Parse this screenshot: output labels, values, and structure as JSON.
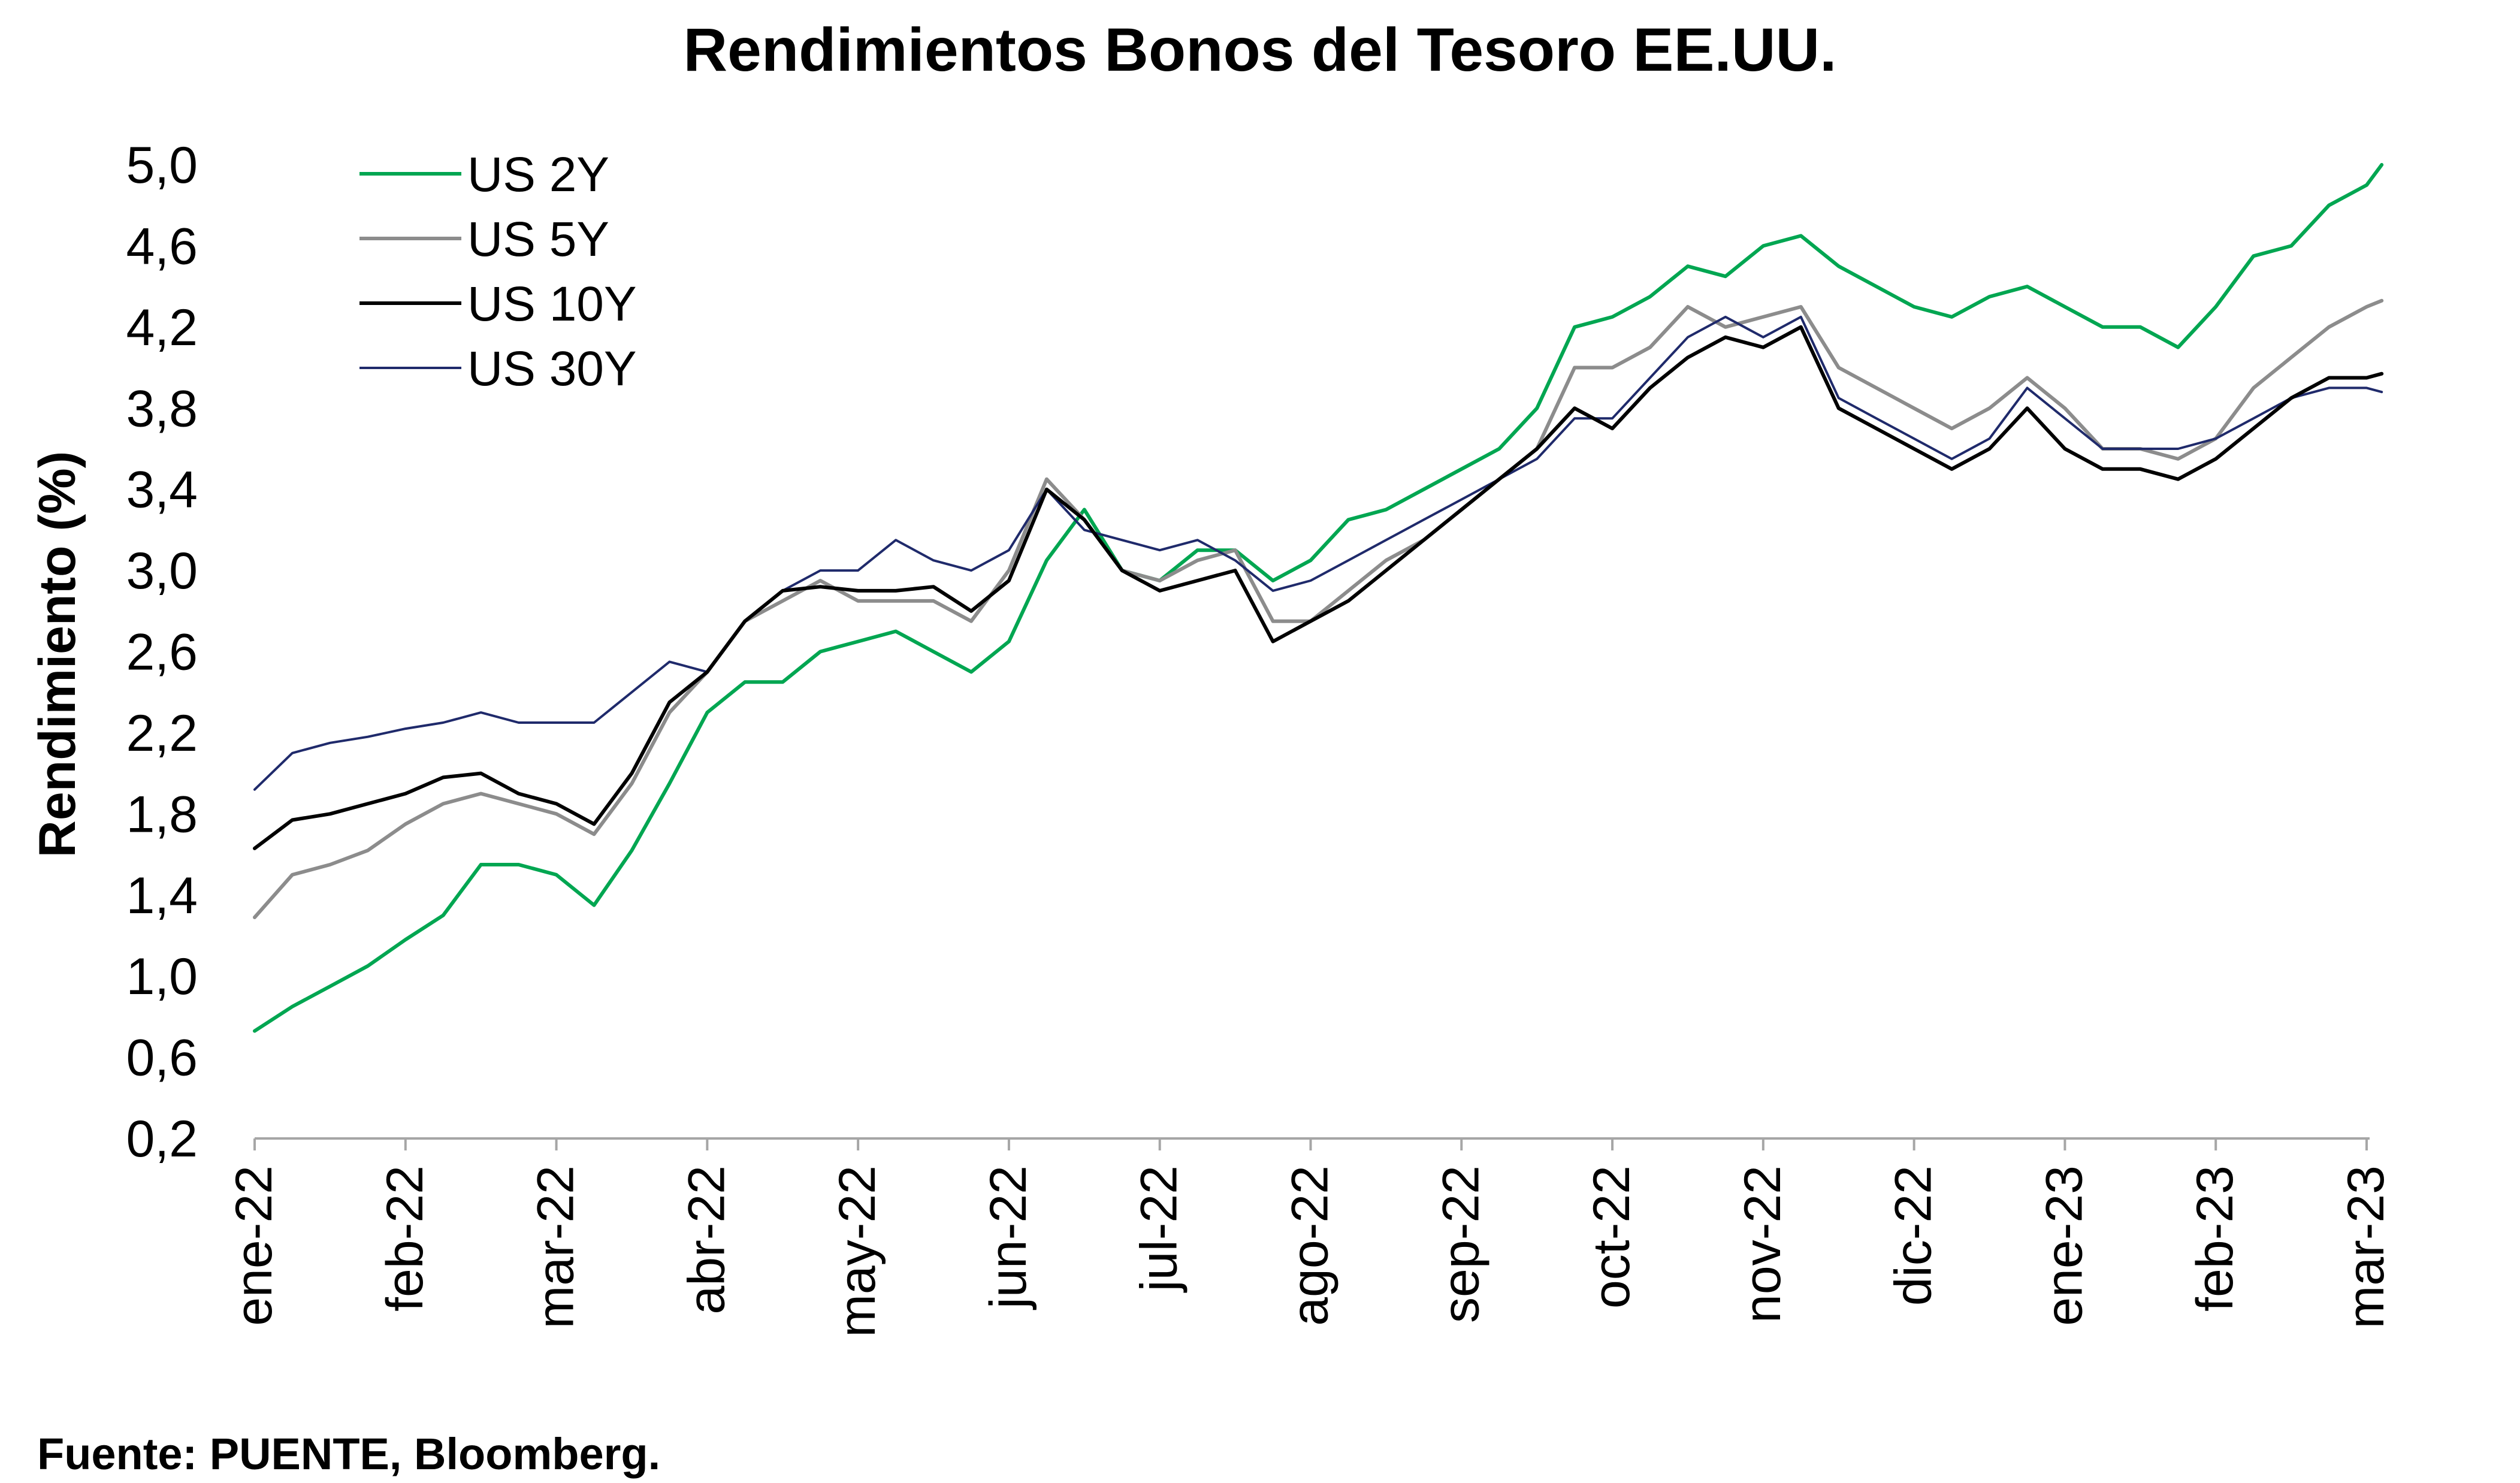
{
  "page": {
    "source": "Fuente: PUENTE, Bloomberg."
  },
  "chart_data": {
    "type": "line",
    "title": "Rendimientos Bonos del Tesoro EE.UU.",
    "xlabel": "",
    "ylabel": "Rendimiento (%)",
    "ylim": [
      0.2,
      5.0
    ],
    "yticks": [
      "5,0",
      "4,6",
      "4,2",
      "3,8",
      "3,4",
      "3,0",
      "2,6",
      "2,2",
      "1,8",
      "1,4",
      "1,0",
      "0,6",
      "0,2"
    ],
    "xlabels": [
      "ene-22",
      "feb-22",
      "mar-22",
      "abr-22",
      "may-22",
      "jun-22",
      "jul-22",
      "ago-22",
      "sep-22",
      "oct-22",
      "nov-22",
      "dic-22",
      "ene-23",
      "feb-23",
      "mar-23"
    ],
    "x": [
      0,
      0.25,
      0.5,
      0.75,
      1,
      1.25,
      1.5,
      1.75,
      2,
      2.25,
      2.5,
      2.75,
      3,
      3.25,
      3.5,
      3.75,
      4,
      4.25,
      4.5,
      4.75,
      5,
      5.25,
      5.5,
      5.75,
      6,
      6.25,
      6.5,
      6.75,
      7,
      7.25,
      7.5,
      7.75,
      8,
      8.25,
      8.5,
      8.75,
      9,
      9.25,
      9.5,
      9.75,
      10,
      10.25,
      10.5,
      10.75,
      11,
      11.25,
      11.5,
      11.75,
      12,
      12.25,
      12.5,
      12.75,
      13,
      13.25,
      13.5,
      13.75,
      14,
      14.1
    ],
    "legend_position": "top-left",
    "grid": false,
    "series": [
      {
        "name": "US 2Y",
        "color": "#00A651",
        "values": [
          0.73,
          0.85,
          0.95,
          1.05,
          1.18,
          1.3,
          1.55,
          1.55,
          1.5,
          1.35,
          1.62,
          1.95,
          2.3,
          2.45,
          2.45,
          2.6,
          2.65,
          2.7,
          2.6,
          2.5,
          2.65,
          3.05,
          3.3,
          3.0,
          2.95,
          3.1,
          3.1,
          2.95,
          3.05,
          3.25,
          3.3,
          3.4,
          3.5,
          3.6,
          3.8,
          4.2,
          4.25,
          4.35,
          4.5,
          4.45,
          4.6,
          4.65,
          4.5,
          4.4,
          4.3,
          4.25,
          4.35,
          4.4,
          4.3,
          4.2,
          4.2,
          4.1,
          4.3,
          4.55,
          4.6,
          4.8,
          4.9,
          5.0
        ]
      },
      {
        "name": "US 5Y",
        "color": "#8C8C8C",
        "values": [
          1.29,
          1.5,
          1.55,
          1.62,
          1.75,
          1.85,
          1.9,
          1.85,
          1.8,
          1.7,
          1.95,
          2.3,
          2.5,
          2.75,
          2.85,
          2.95,
          2.85,
          2.85,
          2.85,
          2.75,
          3.0,
          3.45,
          3.25,
          3.0,
          2.95,
          3.05,
          3.1,
          2.75,
          2.75,
          2.9,
          3.05,
          3.15,
          3.3,
          3.45,
          3.6,
          4.0,
          4.0,
          4.1,
          4.3,
          4.2,
          4.25,
          4.3,
          4.0,
          3.9,
          3.8,
          3.7,
          3.8,
          3.95,
          3.8,
          3.6,
          3.6,
          3.55,
          3.65,
          3.9,
          4.05,
          4.2,
          4.3,
          4.33
        ]
      },
      {
        "name": "US 10Y",
        "color": "#000000",
        "values": [
          1.63,
          1.77,
          1.8,
          1.85,
          1.9,
          1.98,
          2.0,
          1.9,
          1.85,
          1.75,
          2.0,
          2.35,
          2.5,
          2.75,
          2.9,
          2.92,
          2.9,
          2.9,
          2.92,
          2.8,
          2.95,
          3.4,
          3.25,
          3.0,
          2.9,
          2.95,
          3.0,
          2.65,
          2.75,
          2.85,
          3.0,
          3.15,
          3.3,
          3.45,
          3.6,
          3.8,
          3.7,
          3.9,
          4.05,
          4.15,
          4.1,
          4.2,
          3.8,
          3.7,
          3.6,
          3.5,
          3.6,
          3.8,
          3.6,
          3.5,
          3.5,
          3.45,
          3.55,
          3.7,
          3.85,
          3.95,
          3.95,
          3.97
        ]
      },
      {
        "name": "US 30Y",
        "color": "#1F2A6B",
        "values": [
          1.92,
          2.1,
          2.15,
          2.18,
          2.22,
          2.25,
          2.3,
          2.25,
          2.25,
          2.25,
          2.4,
          2.55,
          2.5,
          2.75,
          2.9,
          3.0,
          3.0,
          3.15,
          3.05,
          3.0,
          3.1,
          3.4,
          3.2,
          3.15,
          3.1,
          3.15,
          3.05,
          2.9,
          2.95,
          3.05,
          3.15,
          3.25,
          3.35,
          3.45,
          3.55,
          3.75,
          3.75,
          3.95,
          4.15,
          4.25,
          4.15,
          4.25,
          3.85,
          3.75,
          3.65,
          3.55,
          3.65,
          3.9,
          3.75,
          3.6,
          3.6,
          3.6,
          3.65,
          3.75,
          3.85,
          3.9,
          3.9,
          3.88
        ]
      }
    ]
  }
}
